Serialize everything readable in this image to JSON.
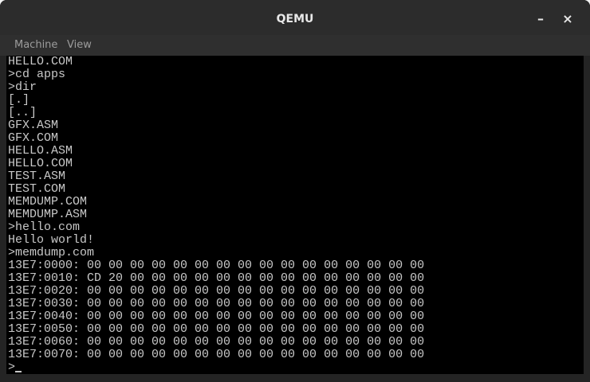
{
  "window": {
    "title": "QEMU",
    "minimize": "–",
    "close": "×"
  },
  "menu": [
    "Machine",
    "View"
  ],
  "terminal": {
    "lines": [
      "HELLO.COM",
      ">cd apps",
      ">dir",
      "[.]",
      "[..]",
      "GFX.ASM",
      "GFX.COM",
      "HELLO.ASM",
      "HELLO.COM",
      "TEST.ASM",
      "TEST.COM",
      "MEMDUMP.COM",
      "MEMDUMP.ASM",
      ">hello.com",
      "Hello world!",
      ">memdump.com",
      "13E7:0000: 00 00 00 00 00 00 00 00 00 00 00 00 00 00 00 00",
      "13E7:0010: CD 20 00 00 00 00 00 00 00 00 00 00 00 00 00 00",
      "13E7:0020: 00 00 00 00 00 00 00 00 00 00 00 00 00 00 00 00",
      "13E7:0030: 00 00 00 00 00 00 00 00 00 00 00 00 00 00 00 00",
      "13E7:0040: 00 00 00 00 00 00 00 00 00 00 00 00 00 00 00 00",
      "13E7:0050: 00 00 00 00 00 00 00 00 00 00 00 00 00 00 00 00",
      "13E7:0060: 00 00 00 00 00 00 00 00 00 00 00 00 00 00 00 00",
      "13E7:0070: 00 00 00 00 00 00 00 00 00 00 00 00 00 00 00 00",
      ">"
    ]
  }
}
